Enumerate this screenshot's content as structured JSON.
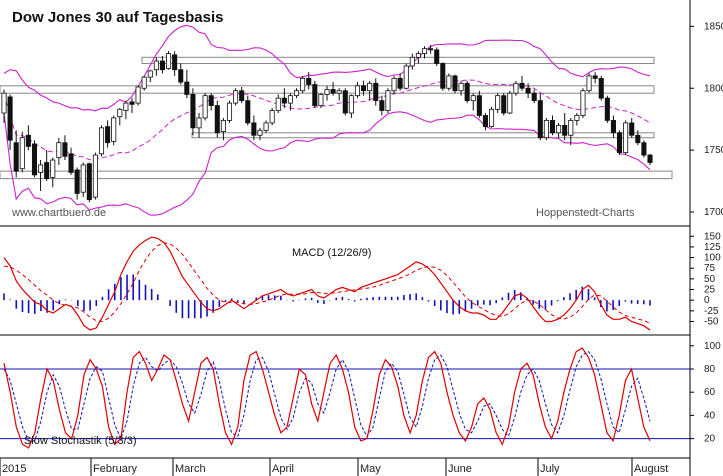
{
  "chart_data": [
    {
      "type": "candlestick",
      "title": "Dow Jones 30 auf Tagesbasis",
      "watermark_left": "www.chartbuero.de",
      "watermark_right": "Hoppenstedt-Charts",
      "y_ticks": [
        "18500",
        "18000",
        "17500",
        "17000"
      ],
      "ylim": [
        17000,
        18600
      ],
      "x_labels": [
        "2015",
        "February",
        "March",
        "April",
        "May",
        "June",
        "July",
        "August"
      ],
      "colors": {
        "up": "#ffffff",
        "down": "#111111",
        "bollinger": "#cc22cc",
        "sma": "#cc22cc",
        "zones": "#888888"
      },
      "indicators": [
        "Bollinger Bands (upper, lower)",
        "Moving average (dashed)"
      ],
      "support_resistance_zones": [
        [
          18250,
          18200
        ],
        [
          18020,
          17960
        ],
        [
          17640,
          17600
        ],
        [
          17330,
          17270
        ]
      ],
      "ohlc": [
        [
          17800,
          17990,
          17720,
          17960
        ],
        [
          17930,
          17950,
          17500,
          17580
        ],
        [
          17560,
          17660,
          17280,
          17330
        ],
        [
          17350,
          17650,
          17320,
          17600
        ],
        [
          17620,
          17700,
          17500,
          17530
        ],
        [
          17550,
          17580,
          17280,
          17300
        ],
        [
          17320,
          17420,
          17170,
          17380
        ],
        [
          17400,
          17500,
          17250,
          17270
        ],
        [
          17280,
          17440,
          17200,
          17420
        ],
        [
          17440,
          17600,
          17380,
          17560
        ],
        [
          17560,
          17620,
          17420,
          17450
        ],
        [
          17470,
          17520,
          17300,
          17320
        ],
        [
          17340,
          17360,
          17100,
          17150
        ],
        [
          17160,
          17400,
          17120,
          17380
        ],
        [
          17390,
          17400,
          17080,
          17100
        ],
        [
          17120,
          17480,
          17100,
          17460
        ],
        [
          17470,
          17700,
          17450,
          17680
        ],
        [
          17690,
          17740,
          17520,
          17560
        ],
        [
          17570,
          17780,
          17540,
          17760
        ],
        [
          17770,
          17840,
          17700,
          17830
        ],
        [
          17820,
          17900,
          17750,
          17880
        ],
        [
          17890,
          17920,
          17800,
          17870
        ],
        [
          17880,
          18020,
          17860,
          18010
        ],
        [
          18000,
          18100,
          17980,
          18090
        ],
        [
          18090,
          18150,
          18050,
          18140
        ],
        [
          18150,
          18250,
          18100,
          18220
        ],
        [
          18220,
          18260,
          18120,
          18150
        ],
        [
          18160,
          18300,
          18150,
          18280
        ],
        [
          18270,
          18300,
          18100,
          18150
        ],
        [
          18150,
          18200,
          18030,
          18050
        ],
        [
          18050,
          18150,
          17920,
          17950
        ],
        [
          17950,
          18000,
          17620,
          17680
        ],
        [
          17680,
          17800,
          17600,
          17760
        ],
        [
          17760,
          17960,
          17740,
          17940
        ],
        [
          17940,
          17960,
          17820,
          17860
        ],
        [
          17860,
          17900,
          17600,
          17640
        ],
        [
          17650,
          17760,
          17580,
          17740
        ],
        [
          17740,
          17900,
          17720,
          17880
        ],
        [
          17880,
          18000,
          17860,
          17980
        ],
        [
          17980,
          18010,
          17880,
          17900
        ],
        [
          17900,
          17940,
          17700,
          17720
        ],
        [
          17720,
          17780,
          17580,
          17620
        ],
        [
          17620,
          17680,
          17580,
          17660
        ],
        [
          17660,
          17740,
          17640,
          17720
        ],
        [
          17720,
          17840,
          17700,
          17820
        ],
        [
          17820,
          17950,
          17800,
          17920
        ],
        [
          17920,
          18000,
          17840,
          17880
        ],
        [
          17880,
          17960,
          17820,
          17940
        ],
        [
          17940,
          18000,
          17920,
          17980
        ],
        [
          17980,
          18100,
          17960,
          18080
        ],
        [
          18080,
          18130,
          17990,
          18030
        ],
        [
          18030,
          18060,
          17840,
          17860
        ],
        [
          17860,
          17960,
          17840,
          17950
        ],
        [
          17950,
          18020,
          17900,
          17990
        ],
        [
          17990,
          18050,
          17940,
          17960
        ],
        [
          17960,
          18000,
          17900,
          17980
        ],
        [
          17980,
          18000,
          17780,
          17800
        ],
        [
          17800,
          17950,
          17760,
          17940
        ],
        [
          17940,
          18050,
          17920,
          18020
        ],
        [
          18020,
          18060,
          17940,
          17980
        ],
        [
          17980,
          18060,
          17900,
          18040
        ],
        [
          18040,
          18080,
          17860,
          17900
        ],
        [
          17900,
          17940,
          17780,
          17820
        ],
        [
          17820,
          18000,
          17800,
          17980
        ],
        [
          17980,
          18100,
          17950,
          18080
        ],
        [
          18080,
          18120,
          17980,
          18000
        ],
        [
          18000,
          18200,
          17990,
          18180
        ],
        [
          18180,
          18280,
          18150,
          18250
        ],
        [
          18250,
          18300,
          18200,
          18280
        ],
        [
          18280,
          18340,
          18240,
          18320
        ],
        [
          18320,
          18350,
          18280,
          18310
        ],
        [
          18310,
          18330,
          18180,
          18200
        ],
        [
          18200,
          18210,
          17980,
          18000
        ],
        [
          18000,
          18120,
          17980,
          18100
        ],
        [
          18100,
          18110,
          17960,
          17980
        ],
        [
          17980,
          18060,
          17940,
          18040
        ],
        [
          18040,
          18060,
          17880,
          17900
        ],
        [
          17900,
          17960,
          17820,
          17940
        ],
        [
          17940,
          17980,
          17760,
          17780
        ],
        [
          17780,
          17800,
          17660,
          17690
        ],
        [
          17690,
          17850,
          17680,
          17830
        ],
        [
          17830,
          17960,
          17800,
          17940
        ],
        [
          17940,
          17960,
          17780,
          17800
        ],
        [
          17800,
          17980,
          17790,
          17960
        ],
        [
          17960,
          18060,
          17940,
          18040
        ],
        [
          18040,
          18100,
          17980,
          18000
        ],
        [
          18000,
          18040,
          17920,
          17960
        ],
        [
          17960,
          17990,
          17880,
          17900
        ],
        [
          17900,
          17960,
          17580,
          17600
        ],
        [
          17600,
          17760,
          17580,
          17740
        ],
        [
          17740,
          17780,
          17620,
          17640
        ],
        [
          17640,
          17720,
          17600,
          17700
        ],
        [
          17700,
          17800,
          17580,
          17620
        ],
        [
          17620,
          17760,
          17540,
          17740
        ],
        [
          17740,
          17800,
          17700,
          17780
        ],
        [
          17780,
          18000,
          17760,
          17980
        ],
        [
          17980,
          18120,
          17960,
          18100
        ],
        [
          18100,
          18130,
          18040,
          18080
        ],
        [
          18080,
          18100,
          17900,
          17920
        ],
        [
          17920,
          17940,
          17720,
          17740
        ],
        [
          17740,
          17780,
          17600,
          17640
        ],
        [
          17640,
          17660,
          17460,
          17480
        ],
        [
          17480,
          17740,
          17460,
          17720
        ],
        [
          17720,
          17760,
          17600,
          17620
        ],
        [
          17620,
          17660,
          17540,
          17560
        ],
        [
          17560,
          17580,
          17440,
          17460
        ],
        [
          17460,
          17470,
          17380,
          17400
        ]
      ]
    },
    {
      "type": "line",
      "title": "MACD (12/26/9)",
      "y_ticks": [
        "150",
        "125",
        "100",
        "75",
        "50",
        "25",
        "0",
        "-25",
        "-50"
      ],
      "ylim": [
        -70,
        160
      ],
      "colors": {
        "macd": "#dd0000",
        "signal": "#dd0000",
        "histogram": "#1111bb"
      },
      "macd": [
        100,
        80,
        45,
        25,
        10,
        -5,
        -10,
        -25,
        -30,
        -20,
        -10,
        -15,
        -35,
        -60,
        -70,
        -65,
        -40,
        -10,
        20,
        60,
        90,
        115,
        130,
        140,
        148,
        145,
        135,
        115,
        85,
        55,
        35,
        15,
        -5,
        -20,
        -25,
        -20,
        -10,
        0,
        -10,
        -20,
        -10,
        0,
        10,
        15,
        20,
        25,
        15,
        10,
        15,
        20,
        25,
        10,
        5,
        15,
        25,
        30,
        25,
        20,
        30,
        35,
        40,
        45,
        50,
        55,
        60,
        70,
        80,
        90,
        85,
        75,
        60,
        40,
        20,
        0,
        -15,
        -25,
        -30,
        -30,
        -35,
        -45,
        -45,
        -30,
        -10,
        10,
        15,
        5,
        -15,
        -35,
        -50,
        -50,
        -45,
        -35,
        -20,
        0,
        25,
        35,
        20,
        -10,
        -35,
        -45,
        -45,
        -40,
        -50,
        -55,
        -60,
        -70
      ],
      "signal": [
        80,
        78,
        70,
        60,
        48,
        35,
        22,
        12,
        0,
        -8,
        -12,
        -14,
        -18,
        -28,
        -40,
        -48,
        -50,
        -42,
        -28,
        -8,
        15,
        40,
        70,
        95,
        115,
        128,
        135,
        132,
        122,
        108,
        88,
        68,
        48,
        28,
        12,
        0,
        -5,
        -5,
        -5,
        -8,
        -10,
        -8,
        -4,
        0,
        6,
        12,
        14,
        14,
        14,
        15,
        18,
        18,
        16,
        16,
        18,
        20,
        22,
        24,
        26,
        28,
        31,
        35,
        40,
        45,
        50,
        55,
        62,
        70,
        76,
        79,
        77,
        70,
        58,
        42,
        25,
        8,
        -5,
        -14,
        -22,
        -30,
        -36,
        -38,
        -32,
        -20,
        -8,
        0,
        -2,
        -10,
        -22,
        -34,
        -42,
        -44,
        -40,
        -30,
        -15,
        2,
        12,
        10,
        -2,
        -16,
        -28,
        -36,
        -40,
        -44,
        -48,
        -54
      ]
    },
    {
      "type": "line",
      "title": "Slow Stochastik (5/3/3)",
      "y_ticks": [
        "100",
        "80",
        "60",
        "40",
        "20"
      ],
      "ylim": [
        5,
        105
      ],
      "reference_lines": [
        80,
        20
      ],
      "colors": {
        "k": "#dd0000",
        "d": "#1111bb",
        "reference": "#1111bb"
      },
      "k": [
        85,
        60,
        30,
        15,
        12,
        25,
        55,
        80,
        70,
        45,
        25,
        20,
        40,
        75,
        88,
        80,
        65,
        30,
        15,
        20,
        60,
        90,
        95,
        85,
        70,
        80,
        92,
        88,
        70,
        50,
        35,
        60,
        85,
        90,
        80,
        50,
        25,
        15,
        30,
        70,
        92,
        95,
        80,
        60,
        40,
        25,
        30,
        55,
        80,
        75,
        50,
        35,
        60,
        85,
        92,
        80,
        60,
        30,
        18,
        20,
        45,
        75,
        88,
        82,
        65,
        40,
        25,
        40,
        70,
        90,
        95,
        85,
        60,
        40,
        25,
        18,
        30,
        50,
        55,
        45,
        25,
        15,
        30,
        60,
        80,
        85,
        75,
        50,
        30,
        20,
        35,
        60,
        80,
        95,
        98,
        90,
        75,
        50,
        25,
        18,
        40,
        70,
        80,
        55,
        30,
        18
      ],
      "d": [
        80,
        70,
        50,
        30,
        18,
        18,
        35,
        60,
        75,
        65,
        45,
        28,
        28,
        50,
        72,
        82,
        78,
        55,
        32,
        20,
        35,
        65,
        85,
        90,
        82,
        78,
        85,
        88,
        82,
        68,
        50,
        42,
        58,
        78,
        86,
        70,
        45,
        25,
        22,
        40,
        70,
        88,
        90,
        78,
        58,
        38,
        28,
        38,
        60,
        72,
        68,
        50,
        42,
        60,
        80,
        88,
        78,
        55,
        32,
        22,
        30,
        55,
        78,
        85,
        78,
        58,
        38,
        30,
        48,
        72,
        88,
        92,
        82,
        62,
        42,
        28,
        25,
        35,
        48,
        50,
        40,
        28,
        22,
        38,
        60,
        75,
        80,
        70,
        50,
        32,
        25,
        40,
        62,
        82,
        92,
        95,
        88,
        72,
        50,
        30,
        25,
        45,
        65,
        72,
        55,
        35
      ]
    }
  ]
}
